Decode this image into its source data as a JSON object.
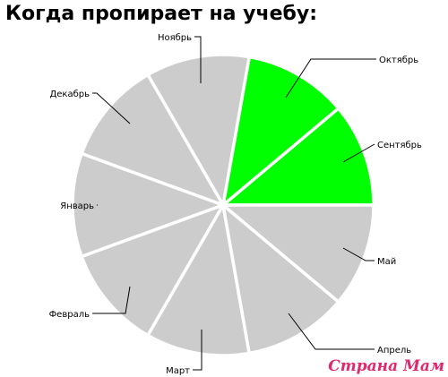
{
  "chart_data": {
    "type": "pie",
    "title": "Когда пропирает на учебу:",
    "categories": [
      "Сентябрь",
      "Май",
      "Апрель",
      "Март",
      "Февраль",
      "Январь",
      "Декабрь",
      "Ноябрь",
      "Октябрь"
    ],
    "values": [
      1,
      1,
      1,
      1,
      1,
      1,
      1,
      1,
      1
    ],
    "colors": [
      "#00ff00",
      "#00ff00",
      "#cccccc",
      "#cccccc",
      "#cccccc",
      "#cccccc",
      "#cccccc",
      "#cccccc",
      "#cccccc"
    ],
    "legend": "none",
    "slice_border_color": "#ffffff"
  },
  "watermark": "Страна Мам"
}
